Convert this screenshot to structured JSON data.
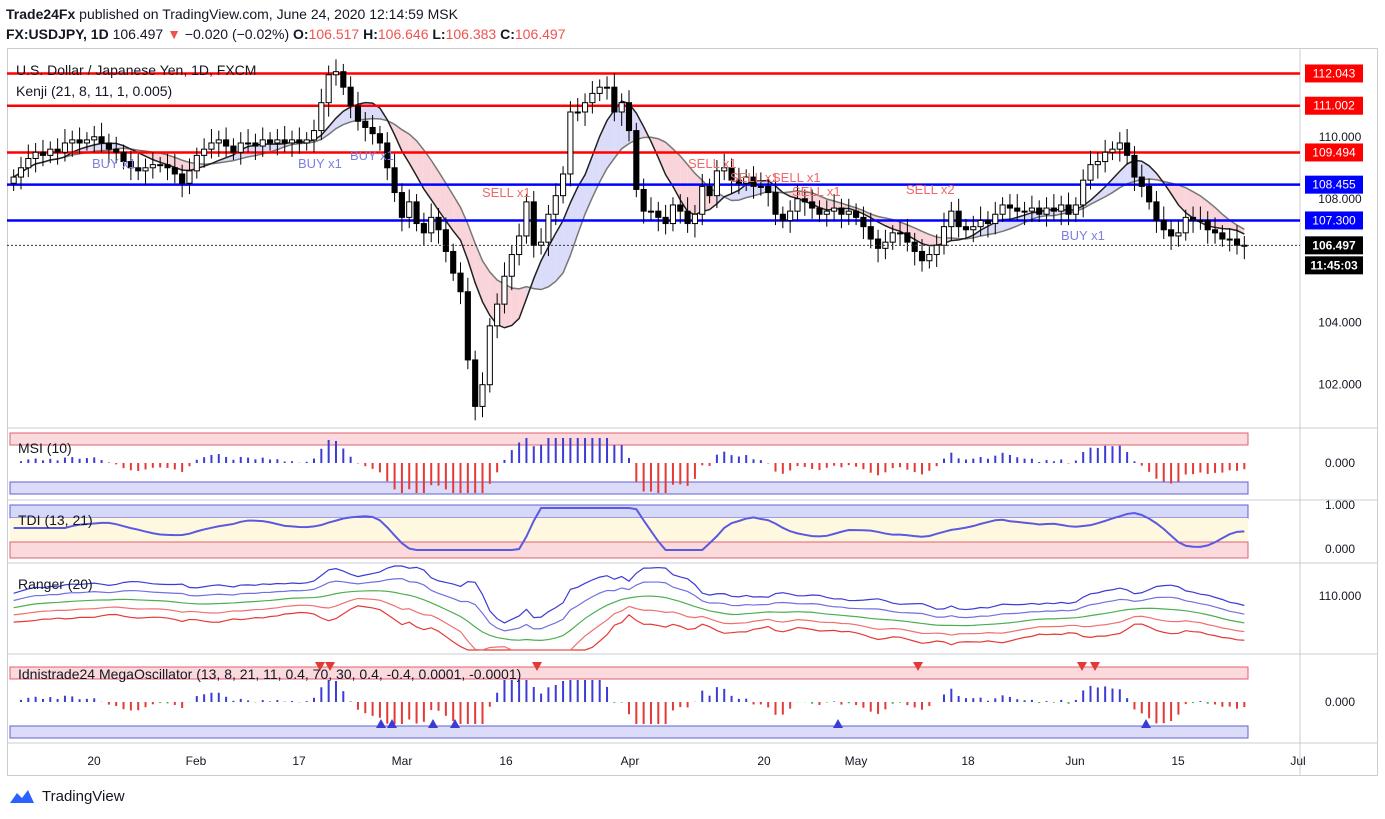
{
  "header": {
    "publisher": "Trade24Fx",
    "published_text": "published on TradingView.com, June 24, 2020 12:14:59 MSK",
    "symbol": "FX:USDJPY, 1D",
    "last": "106.497",
    "change": "−0.020 (−0.02%)",
    "o_label": "O:",
    "o": "106.517",
    "h_label": "H:",
    "h": "106.646",
    "l_label": "L:",
    "l": "106.383",
    "c_label": "C:",
    "c": "106.497"
  },
  "colors": {
    "up": "#ffffff",
    "down": "#000000",
    "red": "#ff0000",
    "blue": "#0000ff",
    "cloud_pink": "#f8d0d6",
    "cloud_green": "#d6f2d0",
    "cloud_blue": "#d6d8f8",
    "buy": "#7b7fe0",
    "sell": "#f06868"
  },
  "chart_data": [
    {
      "type": "candlestick",
      "title": "U.S. Dollar / Japanese Yen, 1D, FXCM",
      "indicator_label": "Kenji (21, 8, 11, 1, 0.005)",
      "ylim": [
        100.7,
        112.8
      ],
      "y_ticks": [
        "110.000",
        "108.000",
        "104.000",
        "102.000"
      ],
      "x_ticks": [
        "20",
        "Feb",
        "17",
        "Mar",
        "16",
        "Apr",
        "20",
        "May",
        "18",
        "Jun",
        "15",
        "Jul"
      ],
      "last_price": "106.497",
      "countdown": "11:45:03",
      "levels": [
        {
          "value": "112.043",
          "color": "red"
        },
        {
          "value": "111.002",
          "color": "red"
        },
        {
          "value": "109.494",
          "color": "red"
        },
        {
          "value": "108.455",
          "color": "blue"
        },
        {
          "value": "107.300",
          "color": "blue"
        }
      ],
      "signal_labels": [
        "BUY x1",
        "BUY x1",
        "BUY x1",
        "SELL x1",
        "SELL x1",
        "SELL x1",
        "SELL x1",
        "SELL x1",
        "SELL x2",
        "BUY x1"
      ],
      "close": [
        108.7,
        109.0,
        109.3,
        109.5,
        109.4,
        109.6,
        109.5,
        109.8,
        109.9,
        109.8,
        109.9,
        110.0,
        109.8,
        109.6,
        109.5,
        109.2,
        109.0,
        108.9,
        109.0,
        109.1,
        109.1,
        109.0,
        108.8,
        108.5,
        108.9,
        109.4,
        109.6,
        109.8,
        109.9,
        109.7,
        109.5,
        109.8,
        109.8,
        109.7,
        109.9,
        109.8,
        109.9,
        109.8,
        109.9,
        109.8,
        109.9,
        110.2,
        111.1,
        112.0,
        112.1,
        111.6,
        111.0,
        110.5,
        110.3,
        110.1,
        109.8,
        109.0,
        108.2,
        107.4,
        107.9,
        107.2,
        106.9,
        107.4,
        107.0,
        106.3,
        105.6,
        105.0,
        102.8,
        101.3,
        102.0,
        103.9,
        104.6,
        105.5,
        106.2,
        106.8,
        107.9,
        106.5,
        106.6,
        107.5,
        108.1,
        108.8,
        110.8,
        110.8,
        111.1,
        111.4,
        111.6,
        111.6,
        110.8,
        111.1,
        110.2,
        108.3,
        107.6,
        107.6,
        107.4,
        107.2,
        107.8,
        107.6,
        107.2,
        107.5,
        108.4,
        108.1,
        108.9,
        109.0,
        108.6,
        108.5,
        108.7,
        108.4,
        108.4,
        108.2,
        107.5,
        107.3,
        107.6,
        108.0,
        107.9,
        107.7,
        107.5,
        107.6,
        107.7,
        107.5,
        107.6,
        107.4,
        107.1,
        106.7,
        106.4,
        106.6,
        106.9,
        106.9,
        106.6,
        106.3,
        106.0,
        106.2,
        106.5,
        107.1,
        107.6,
        107.1,
        107.0,
        107.1,
        107.3,
        107.2,
        107.5,
        107.8,
        107.7,
        107.6,
        107.6,
        107.7,
        107.5,
        107.7,
        107.6,
        107.8,
        107.5,
        107.8,
        108.6,
        109.1,
        109.2,
        109.5,
        109.6,
        109.8,
        109.4,
        108.7,
        108.4,
        107.9,
        107.3,
        107.0,
        106.8,
        106.9,
        107.4,
        107.3,
        107.3,
        107.0,
        106.9,
        106.7,
        106.7,
        106.5,
        106.5
      ],
      "open_offsets_note": "open = previous close",
      "oscillators": [
        {
          "name": "MSI (10)",
          "y_ticks": [
            "0.000"
          ]
        },
        {
          "name": "TDI (13, 21)",
          "y_ticks": [
            "1.000",
            "0.000"
          ]
        },
        {
          "name": "Ranger (20)",
          "y_ticks": [
            "110.000"
          ]
        },
        {
          "name": "Idnistrade24 MegaOscillator (13, 8, 21, 11, 0.4, 70, 30, 0.4, -0.4, 0.0001, -0.0001)",
          "y_ticks": [
            "0.000"
          ]
        }
      ]
    }
  ],
  "branding": {
    "name": "TradingView"
  }
}
